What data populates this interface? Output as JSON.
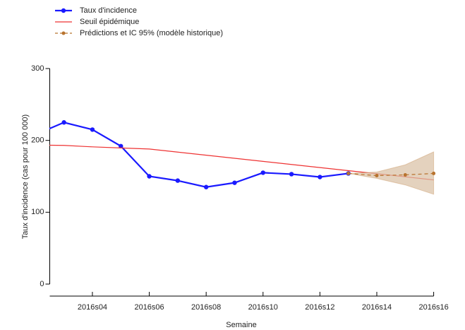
{
  "chart_data": {
    "type": "line",
    "xlabel": "Semaine",
    "ylabel": "Taux d'incidence (cas pour 100 000)",
    "xlim": [
      2.5,
      16
    ],
    "xticks": [
      {
        "value": 4,
        "label": "2016s04"
      },
      {
        "value": 6,
        "label": "2016s06"
      },
      {
        "value": 8,
        "label": "2016s08"
      },
      {
        "value": 10,
        "label": "2016s10"
      },
      {
        "value": 12,
        "label": "2016s12"
      },
      {
        "value": 14,
        "label": "2016s14"
      },
      {
        "value": 16,
        "label": "2016s16"
      }
    ],
    "ylim": [
      0,
      300
    ],
    "yticks": [
      0,
      100,
      200,
      300
    ],
    "legend": "top-left",
    "series": [
      {
        "name": "Taux d'incidence",
        "color": "#1a1aff",
        "style": "solid",
        "markers": true,
        "x": [
          2,
          3,
          4,
          5,
          6,
          7,
          8,
          9,
          10,
          11,
          12,
          13
        ],
        "values": [
          208,
          225,
          215,
          192,
          150,
          144,
          135,
          141,
          155,
          153,
          149,
          154
        ]
      },
      {
        "name": "Seuil épidémique",
        "color": "#ee3333",
        "style": "solid",
        "markers": false,
        "x": [
          2,
          3,
          4,
          5,
          6,
          7,
          8,
          9,
          10,
          11,
          12,
          13,
          14,
          15,
          16
        ],
        "values": [
          193.5,
          193,
          191,
          189.5,
          188,
          183.7,
          179.4,
          175.1,
          170.8,
          166.5,
          162.2,
          157.9,
          153.6,
          149.3,
          145
        ]
      },
      {
        "name": "Prédictions et IC 95% (modèle historique)",
        "color": "#b8732e",
        "style": "dashed",
        "markers": true,
        "band_color": "#d9bfa3",
        "x": [
          13,
          14,
          15,
          16
        ],
        "values": [
          154,
          151,
          152,
          154
        ],
        "lower": [
          154,
          147,
          138,
          125
        ],
        "upper": [
          154,
          156,
          166,
          184
        ]
      }
    ]
  }
}
